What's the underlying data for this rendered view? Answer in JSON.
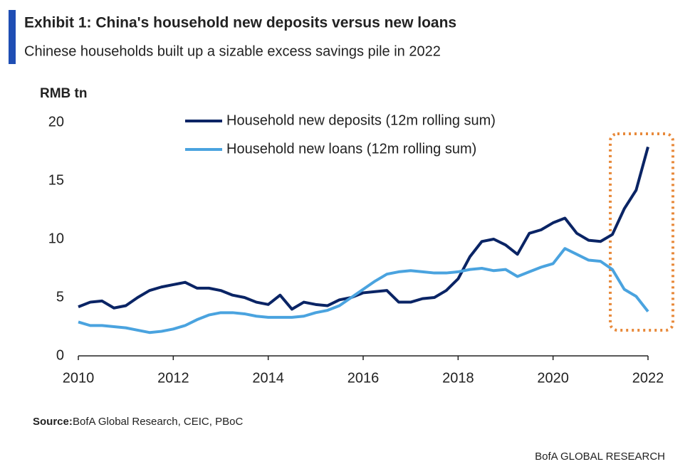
{
  "header": {
    "title": "Exhibit 1: China's household new deposits versus new loans",
    "subtitle": "Chinese households built up a sizable excess savings pile in 2022"
  },
  "chart_data": {
    "type": "line",
    "y_axis_label": "RMB tn",
    "x": [
      2010,
      2010.25,
      2010.5,
      2010.75,
      2011,
      2011.25,
      2011.5,
      2011.75,
      2012,
      2012.25,
      2012.5,
      2012.75,
      2013,
      2013.25,
      2013.5,
      2013.75,
      2014,
      2014.25,
      2014.5,
      2014.75,
      2015,
      2015.25,
      2015.5,
      2015.75,
      2016,
      2016.25,
      2016.5,
      2016.75,
      2017,
      2017.25,
      2017.5,
      2017.75,
      2018,
      2018.25,
      2018.5,
      2018.75,
      2019,
      2019.25,
      2019.5,
      2019.75,
      2020,
      2020.25,
      2020.5,
      2020.75,
      2021,
      2021.25,
      2021.5,
      2021.75,
      2022
    ],
    "series": [
      {
        "name": "Household new deposits (12m rolling sum)",
        "color": "#0a2465",
        "values": [
          4.2,
          4.6,
          4.7,
          4.1,
          4.3,
          5.0,
          5.6,
          5.9,
          6.1,
          6.3,
          5.8,
          5.8,
          5.6,
          5.2,
          5.0,
          4.6,
          4.4,
          5.2,
          4.0,
          4.6,
          4.4,
          4.3,
          4.8,
          5.0,
          5.4,
          5.5,
          5.6,
          4.6,
          4.6,
          4.9,
          5.0,
          5.6,
          6.6,
          8.5,
          9.8,
          10.0,
          9.5,
          8.7,
          10.5,
          10.8,
          11.4,
          11.8,
          10.5,
          9.9,
          9.8,
          10.4,
          12.6,
          14.2,
          17.9
        ]
      },
      {
        "name": "Household new loans (12m rolling sum)",
        "color": "#4aa3df",
        "values": [
          2.9,
          2.6,
          2.6,
          2.5,
          2.4,
          2.2,
          2.0,
          2.1,
          2.3,
          2.6,
          3.1,
          3.5,
          3.7,
          3.7,
          3.6,
          3.4,
          3.3,
          3.3,
          3.3,
          3.4,
          3.7,
          3.9,
          4.3,
          5.0,
          5.7,
          6.4,
          7.0,
          7.2,
          7.3,
          7.2,
          7.1,
          7.1,
          7.2,
          7.4,
          7.5,
          7.3,
          7.4,
          6.8,
          7.2,
          7.6,
          7.9,
          9.2,
          8.7,
          8.2,
          8.1,
          7.4,
          5.7,
          5.1,
          3.8
        ]
      }
    ],
    "xlim": [
      2010,
      2022
    ],
    "xticks": [
      2010,
      2012,
      2014,
      2016,
      2018,
      2020,
      2022
    ],
    "ylim": [
      0,
      20
    ],
    "yticks": [
      0,
      5,
      10,
      15,
      20
    ],
    "grid": false
  },
  "source": {
    "label": "Source:",
    "text": "BofA Global Research, CEIC, PBoC"
  },
  "footer": "BofA GLOBAL RESEARCH"
}
